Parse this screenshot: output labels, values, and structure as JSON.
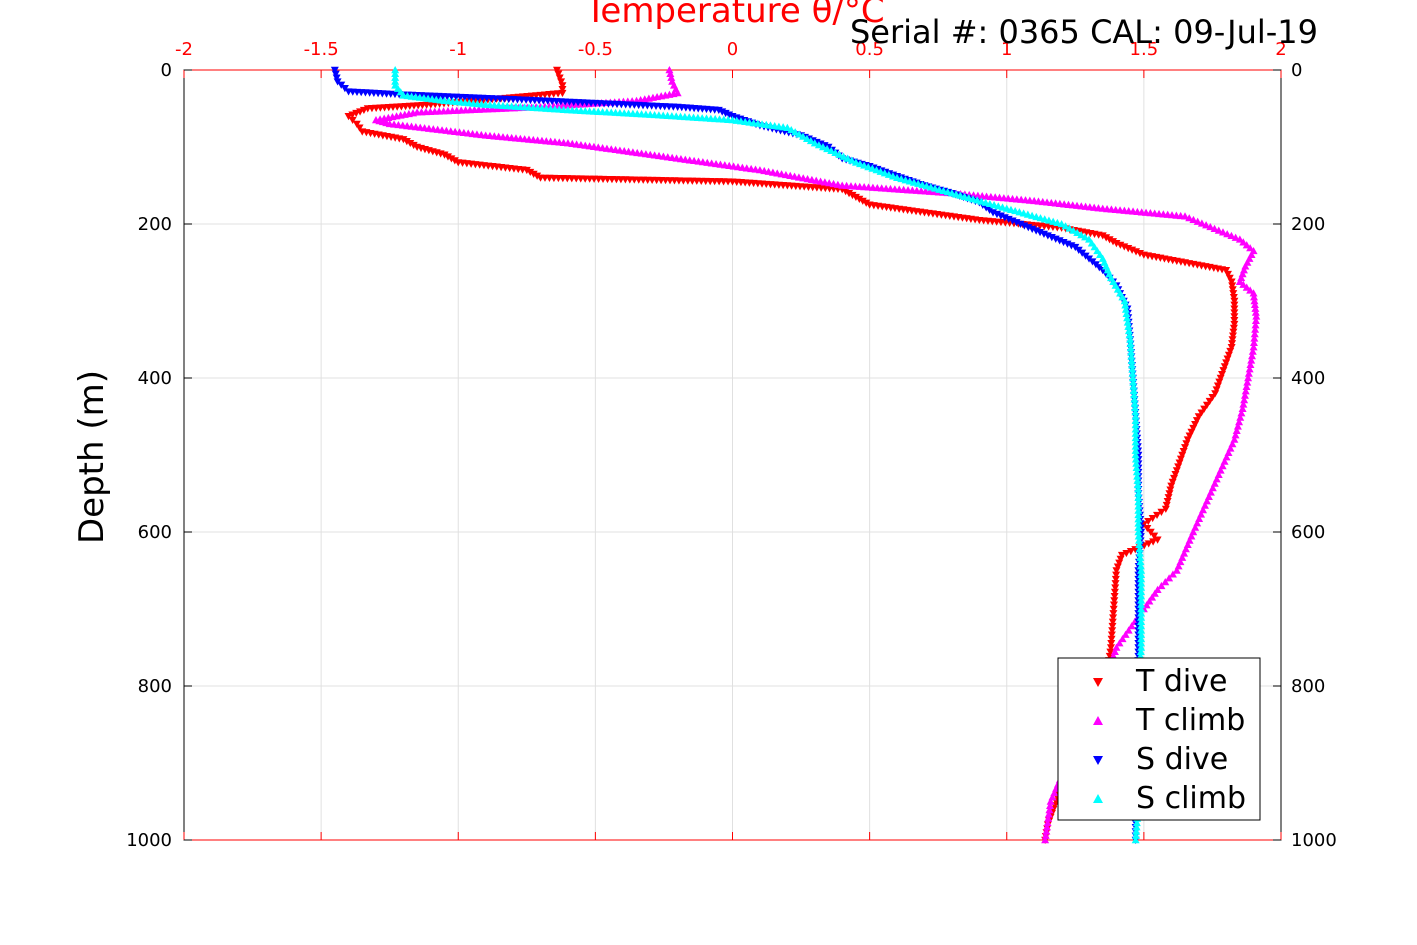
{
  "header": {
    "serial_text": "Serial #: 0365  CAL: 09-Jul-19"
  },
  "chart_data": {
    "type": "scatter",
    "title": "Temperature θ/°C",
    "xlabel": "Temperature θ/°C",
    "ylabel": "Depth (m)",
    "xlim": [
      -2,
      2
    ],
    "ylim": [
      0,
      1000
    ],
    "y_reversed": true,
    "grid": true,
    "legend_position": "bottom-right",
    "x_ticks": [
      "-2",
      "-1.5",
      "-1",
      "-0.5",
      "0",
      "0.5",
      "1",
      "1.5",
      "2"
    ],
    "y_ticks": [
      "0",
      "200",
      "400",
      "600",
      "800",
      "1000"
    ],
    "colors": {
      "axis_top": "#ff0000",
      "grid": "#e0e0e0"
    },
    "series": [
      {
        "name": "T dive",
        "color": "#ff0000",
        "marker": "triangle-down",
        "points": [
          [
            -0.64,
            0
          ],
          [
            -0.63,
            10
          ],
          [
            -0.62,
            20
          ],
          [
            -0.62,
            30
          ],
          [
            -1.1,
            45
          ],
          [
            -1.33,
            50
          ],
          [
            -1.4,
            60
          ],
          [
            -1.37,
            70
          ],
          [
            -1.35,
            80
          ],
          [
            -1.2,
            90
          ],
          [
            -1.15,
            100
          ],
          [
            -1.05,
            110
          ],
          [
            -1.0,
            120
          ],
          [
            -0.75,
            130
          ],
          [
            -0.7,
            140
          ],
          [
            0.0,
            145
          ],
          [
            0.2,
            150
          ],
          [
            0.4,
            155
          ],
          [
            0.45,
            165
          ],
          [
            0.5,
            175
          ],
          [
            0.7,
            185
          ],
          [
            0.9,
            195
          ],
          [
            1.2,
            205
          ],
          [
            1.35,
            215
          ],
          [
            1.4,
            225
          ],
          [
            1.5,
            240
          ],
          [
            1.65,
            250
          ],
          [
            1.8,
            260
          ],
          [
            1.82,
            275
          ],
          [
            1.83,
            300
          ],
          [
            1.83,
            330
          ],
          [
            1.82,
            360
          ],
          [
            1.79,
            390
          ],
          [
            1.76,
            420
          ],
          [
            1.7,
            450
          ],
          [
            1.66,
            480
          ],
          [
            1.63,
            510
          ],
          [
            1.6,
            540
          ],
          [
            1.58,
            570
          ],
          [
            1.5,
            590
          ],
          [
            1.55,
            610
          ],
          [
            1.42,
            630
          ],
          [
            1.4,
            650
          ],
          [
            1.39,
            700
          ],
          [
            1.38,
            750
          ],
          [
            1.36,
            800
          ],
          [
            1.3,
            850
          ],
          [
            1.22,
            900
          ],
          [
            1.18,
            950
          ],
          [
            1.15,
            980
          ],
          [
            1.14,
            1000
          ]
        ]
      },
      {
        "name": "T climb",
        "color": "#ff00ff",
        "marker": "triangle-up",
        "points": [
          [
            1.14,
            1000
          ],
          [
            1.16,
            950
          ],
          [
            1.22,
            900
          ],
          [
            1.3,
            850
          ],
          [
            1.35,
            800
          ],
          [
            1.4,
            750
          ],
          [
            1.5,
            700
          ],
          [
            1.55,
            675
          ],
          [
            1.62,
            650
          ],
          [
            1.68,
            600
          ],
          [
            1.73,
            560
          ],
          [
            1.78,
            520
          ],
          [
            1.83,
            480
          ],
          [
            1.86,
            440
          ],
          [
            1.88,
            400
          ],
          [
            1.9,
            360
          ],
          [
            1.91,
            320
          ],
          [
            1.9,
            290
          ],
          [
            1.85,
            275
          ],
          [
            1.87,
            255
          ],
          [
            1.9,
            235
          ],
          [
            1.85,
            220
          ],
          [
            1.65,
            190
          ],
          [
            1.35,
            180
          ],
          [
            1.1,
            170
          ],
          [
            0.8,
            160
          ],
          [
            0.4,
            150
          ],
          [
            0.1,
            130
          ],
          [
            -0.3,
            110
          ],
          [
            -0.6,
            95
          ],
          [
            -0.9,
            85
          ],
          [
            -1.25,
            70
          ],
          [
            -1.3,
            65
          ],
          [
            -1.15,
            55
          ],
          [
            -0.7,
            48
          ],
          [
            -0.35,
            40
          ],
          [
            -0.2,
            30
          ],
          [
            -0.22,
            15
          ],
          [
            -0.23,
            0
          ]
        ]
      },
      {
        "name": "S dive",
        "color": "#0000ff",
        "marker": "triangle-down",
        "points": [
          [
            -1.45,
            0
          ],
          [
            -1.44,
            15
          ],
          [
            -1.4,
            28
          ],
          [
            -1.2,
            32
          ],
          [
            -0.8,
            38
          ],
          [
            -0.5,
            43
          ],
          [
            -0.2,
            48
          ],
          [
            -0.05,
            52
          ],
          [
            0.0,
            60
          ],
          [
            0.1,
            72
          ],
          [
            0.25,
            85
          ],
          [
            0.35,
            100
          ],
          [
            0.4,
            115
          ],
          [
            0.5,
            125
          ],
          [
            0.6,
            138
          ],
          [
            0.7,
            150
          ],
          [
            0.8,
            160
          ],
          [
            0.9,
            172
          ],
          [
            0.95,
            185
          ],
          [
            1.05,
            200
          ],
          [
            1.15,
            215
          ],
          [
            1.25,
            230
          ],
          [
            1.3,
            245
          ],
          [
            1.35,
            260
          ],
          [
            1.4,
            280
          ],
          [
            1.44,
            310
          ],
          [
            1.45,
            350
          ],
          [
            1.46,
            400
          ],
          [
            1.47,
            450
          ],
          [
            1.48,
            500
          ],
          [
            1.48,
            550
          ],
          [
            1.49,
            600
          ],
          [
            1.48,
            650
          ],
          [
            1.48,
            700
          ],
          [
            1.48,
            750
          ],
          [
            1.48,
            800
          ],
          [
            1.47,
            850
          ],
          [
            1.47,
            900
          ],
          [
            1.47,
            950
          ],
          [
            1.47,
            1000
          ]
        ]
      },
      {
        "name": "S climb",
        "color": "#00ffff",
        "marker": "triangle-up",
        "points": [
          [
            1.47,
            1000
          ],
          [
            1.48,
            950
          ],
          [
            1.48,
            900
          ],
          [
            1.48,
            850
          ],
          [
            1.48,
            800
          ],
          [
            1.49,
            750
          ],
          [
            1.49,
            700
          ],
          [
            1.49,
            650
          ],
          [
            1.48,
            600
          ],
          [
            1.48,
            550
          ],
          [
            1.47,
            500
          ],
          [
            1.47,
            450
          ],
          [
            1.46,
            400
          ],
          [
            1.45,
            350
          ],
          [
            1.43,
            300
          ],
          [
            1.38,
            270
          ],
          [
            1.35,
            245
          ],
          [
            1.3,
            220
          ],
          [
            1.2,
            200
          ],
          [
            1.0,
            180
          ],
          [
            0.8,
            160
          ],
          [
            0.6,
            140
          ],
          [
            0.45,
            120
          ],
          [
            0.3,
            95
          ],
          [
            0.2,
            75
          ],
          [
            0.0,
            65
          ],
          [
            -0.3,
            58
          ],
          [
            -0.6,
            52
          ],
          [
            -0.9,
            45
          ],
          [
            -1.05,
            40
          ],
          [
            -1.2,
            33
          ],
          [
            -1.23,
            20
          ],
          [
            -1.23,
            0
          ]
        ]
      }
    ]
  }
}
